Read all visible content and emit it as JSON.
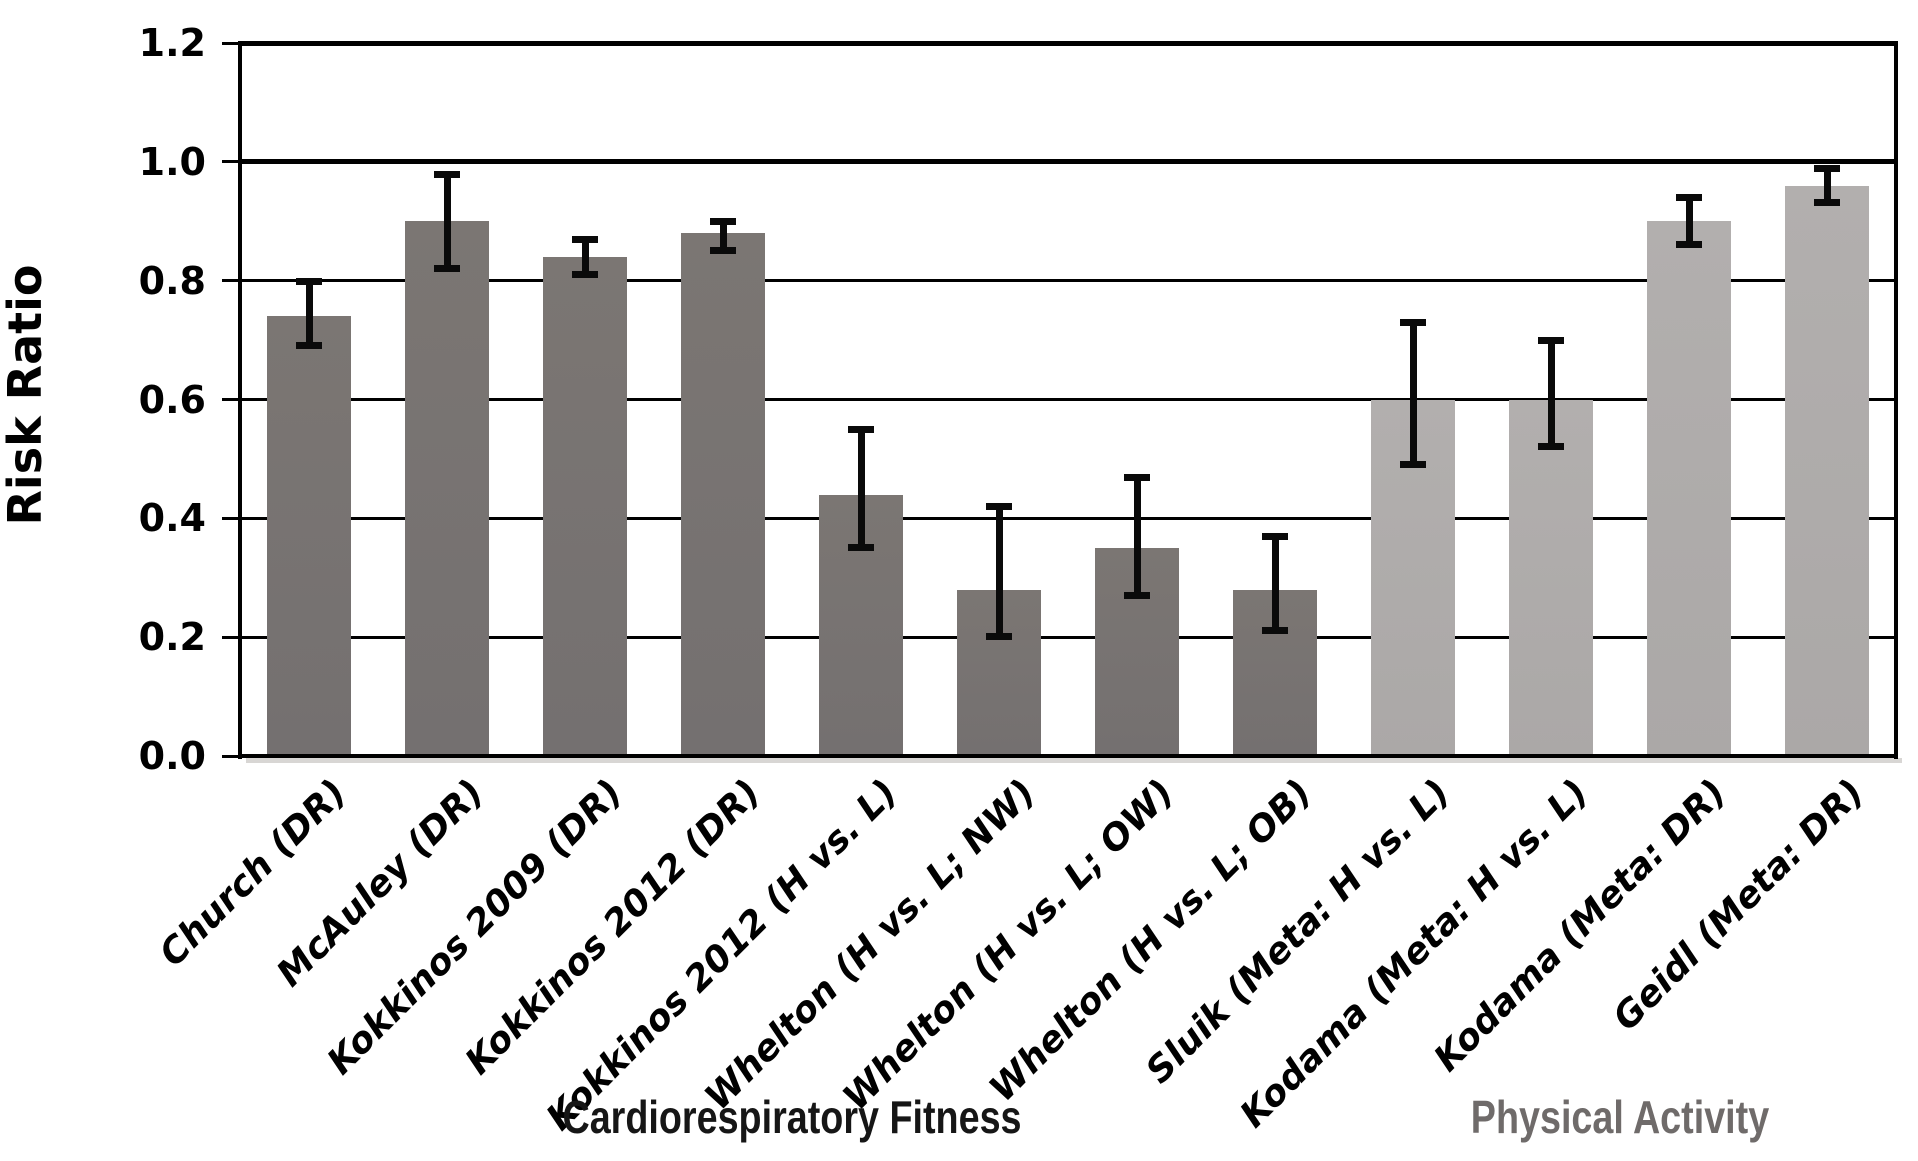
{
  "chart_data": {
    "type": "bar",
    "title": "",
    "xlabel": "",
    "ylabel": "Risk Ratio",
    "ylim": [
      0,
      1.2
    ],
    "ytick_step": 0.2,
    "ytick_labels": [
      "1.2",
      "1.0",
      "0.8",
      "0.6",
      "0.4",
      "0.2",
      "0.0"
    ],
    "grid": "horizontal",
    "reference_line": 1.0,
    "legend": "none",
    "error_bars": "95% CI caps, black",
    "groups": [
      {
        "label": "Cardiorespiratory Fitness",
        "bar_color": "#767170",
        "label_color": "#161616"
      },
      {
        "label": "Physical Activity",
        "bar_color": "#aeabaa",
        "label_color": "#6f6b6a"
      }
    ],
    "bars": [
      {
        "label": "Church (DR)",
        "value": 0.74,
        "ci_low": 0.69,
        "ci_high": 0.8,
        "group": 0
      },
      {
        "label": "McAuley (DR)",
        "value": 0.9,
        "ci_low": 0.82,
        "ci_high": 0.98,
        "group": 0
      },
      {
        "label": "Kokkinos 2009 (DR)",
        "value": 0.84,
        "ci_low": 0.81,
        "ci_high": 0.87,
        "group": 0
      },
      {
        "label": "Kokkinos 2012 (DR)",
        "value": 0.88,
        "ci_low": 0.85,
        "ci_high": 0.9,
        "group": 0
      },
      {
        "label": "Kokkinos 2012 (H vs. L)",
        "value": 0.44,
        "ci_low": 0.35,
        "ci_high": 0.55,
        "group": 0
      },
      {
        "label": "Whelton (H vs. L; NW)",
        "value": 0.28,
        "ci_low": 0.2,
        "ci_high": 0.42,
        "group": 0
      },
      {
        "label": "Whelton (H vs. L; OW)",
        "value": 0.35,
        "ci_low": 0.27,
        "ci_high": 0.47,
        "group": 0
      },
      {
        "label": "Whelton (H vs. L; OB)",
        "value": 0.28,
        "ci_low": 0.21,
        "ci_high": 0.37,
        "group": 0
      },
      {
        "label": "Sluik (Meta: H vs. L)",
        "value": 0.6,
        "ci_low": 0.49,
        "ci_high": 0.73,
        "group": 1
      },
      {
        "label": "Kodama (Meta: H vs. L)",
        "value": 0.6,
        "ci_low": 0.52,
        "ci_high": 0.7,
        "group": 1
      },
      {
        "label": "Kodama (Meta: DR)",
        "value": 0.9,
        "ci_low": 0.86,
        "ci_high": 0.94,
        "group": 1
      },
      {
        "label": "Geidl (Meta: DR)",
        "value": 0.96,
        "ci_low": 0.93,
        "ci_high": 0.99,
        "group": 1
      }
    ]
  }
}
